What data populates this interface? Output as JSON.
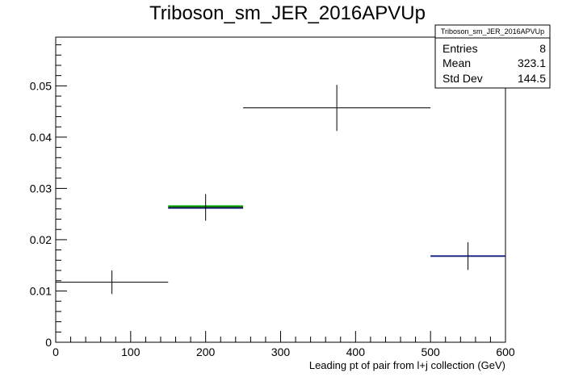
{
  "chart_data": {
    "type": "histogram",
    "title": "Triboson_sm_JER_2016APVUp",
    "xlabel": "Leading pt of pair from l+j collection (GeV)",
    "ylabel": "",
    "xlim": [
      0,
      600
    ],
    "ylim": [
      0,
      0.0595
    ],
    "x_ticks": [
      0,
      100,
      200,
      300,
      400,
      500,
      600
    ],
    "y_ticks": [
      0,
      0.01,
      0.02,
      0.03,
      0.04,
      0.05
    ],
    "x_tick_labels": [
      "0",
      "100",
      "200",
      "300",
      "400",
      "500",
      "600"
    ],
    "y_tick_labels": [
      "0",
      "0.01",
      "0.02",
      "0.03",
      "0.04",
      "0.05"
    ],
    "bins": [
      {
        "x_low": 0,
        "x_high": 150,
        "x": 75,
        "y": 0.0117,
        "err": 0.0023,
        "color": "#000000"
      },
      {
        "x_low": 150,
        "x_high": 250,
        "x": 200,
        "y": 0.0263,
        "err": 0.0026,
        "color": "#000000",
        "band_colors": [
          "#00aa00",
          "#1f2a8a"
        ]
      },
      {
        "x_low": 250,
        "x_high": 500,
        "x": 375,
        "y": 0.0457,
        "err": 0.0045,
        "color": "#000000"
      },
      {
        "x_low": 500,
        "x_high": 600,
        "x": 550,
        "y": 0.0168,
        "err": 0.0027,
        "color": "#1f2a8a"
      }
    ],
    "stats_box": {
      "name": "Triboson_sm_JER_2016APVUp",
      "entries_label": "Entries",
      "entries_value": "8",
      "mean_label": "Mean",
      "mean_value": "323.1",
      "stddev_label": "Std Dev",
      "stddev_value": "144.5"
    },
    "grid": false,
    "legend": "stats box top-right"
  }
}
